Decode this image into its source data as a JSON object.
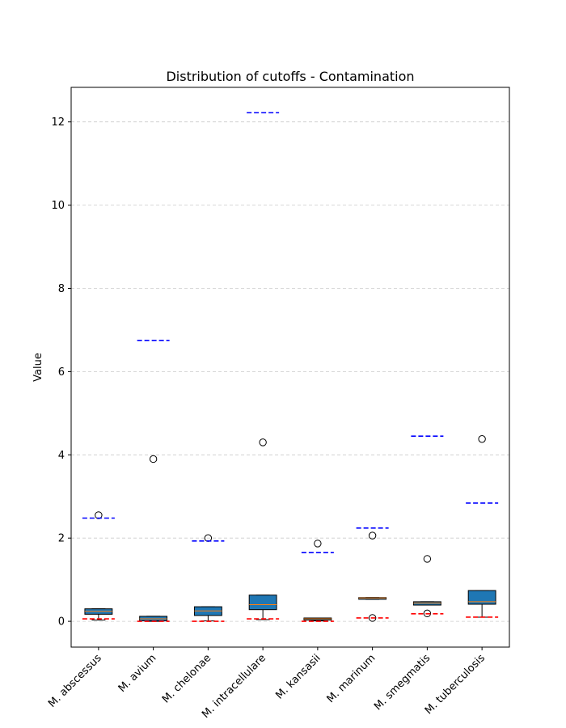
{
  "chart_data": {
    "type": "box",
    "title": "Distribution of cutoffs - Contamination",
    "xlabel": "",
    "ylabel": "Value",
    "ylim": [
      -0.62,
      12.83
    ],
    "yticks": [
      0,
      2,
      4,
      6,
      8,
      10,
      12
    ],
    "grid": "y-dashed",
    "categories": [
      "M. abscessus",
      "M. avium",
      "M. chelonae",
      "M. intracellulare",
      "M. kansasii",
      "M. marinum",
      "M. smegmatis",
      "M. tuberculosis"
    ],
    "boxes": [
      {
        "whislo": 0.03,
        "q1": 0.17,
        "med": 0.24,
        "q3": 0.3,
        "whishi": 0.3,
        "fliers": [
          2.55
        ]
      },
      {
        "whislo": 0.0,
        "q1": 0.01,
        "med": 0.06,
        "q3": 0.12,
        "whishi": 0.12,
        "fliers": [
          3.9
        ]
      },
      {
        "whislo": 0.01,
        "q1": 0.14,
        "med": 0.25,
        "q3": 0.35,
        "whishi": 0.35,
        "fliers": [
          2.0
        ]
      },
      {
        "whislo": 0.04,
        "q1": 0.28,
        "med": 0.4,
        "q3": 0.63,
        "whishi": 0.63,
        "fliers": [
          4.3
        ]
      },
      {
        "whislo": 0.01,
        "q1": 0.03,
        "med": 0.06,
        "q3": 0.08,
        "whishi": 0.08,
        "fliers": [
          1.87
        ]
      },
      {
        "whislo": 0.53,
        "q1": 0.53,
        "med": 0.56,
        "q3": 0.57,
        "whishi": 0.57,
        "fliers": [
          2.06,
          0.08
        ]
      },
      {
        "whislo": 0.39,
        "q1": 0.39,
        "med": 0.44,
        "q3": 0.47,
        "whishi": 0.47,
        "fliers": [
          1.5,
          0.19
        ]
      },
      {
        "whislo": 0.1,
        "q1": 0.41,
        "med": 0.47,
        "q3": 0.74,
        "whishi": 0.74,
        "fliers": [
          4.38
        ]
      }
    ],
    "upper_cutoffs": [
      2.48,
      6.75,
      1.93,
      12.22,
      1.65,
      2.24,
      4.45,
      2.84
    ],
    "lower_cutoffs": [
      0.06,
      0.0,
      0.0,
      0.06,
      0.0,
      0.08,
      0.18,
      0.1
    ],
    "colors": {
      "box_fill": "#1f77b4",
      "median": "#ff7f0e",
      "upper_cutoff": "#0000ff",
      "lower_cutoff": "#ff0000",
      "grid": "#cccccc"
    }
  }
}
